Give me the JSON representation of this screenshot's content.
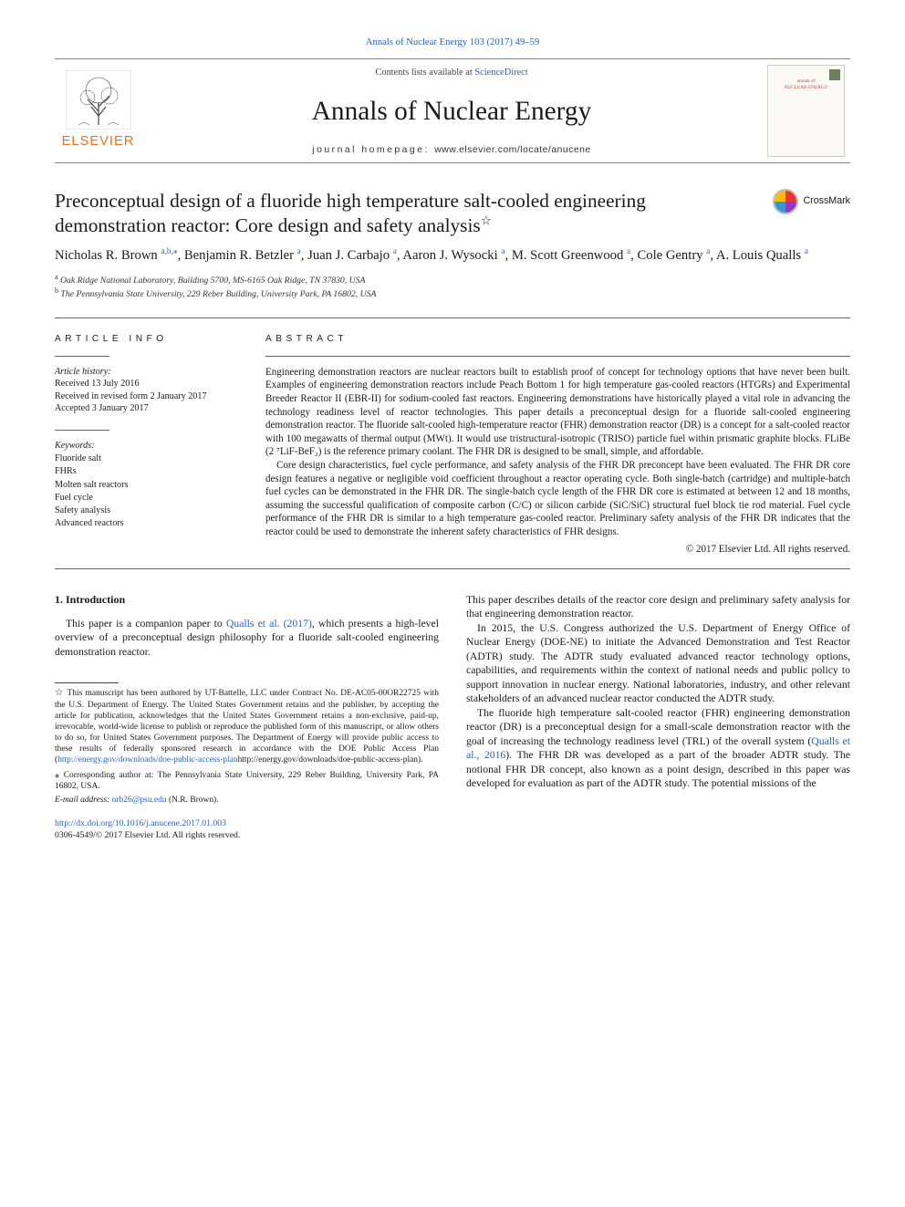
{
  "top_citation": "Annals of Nuclear Energy 103 (2017) 49–59",
  "header": {
    "contents_prefix": "Contents lists available at ",
    "contents_link": "ScienceDirect",
    "journal": "Annals of Nuclear Energy",
    "homepage_label": "journal homepage: ",
    "homepage_url": "www.elsevier.com/locate/anucene",
    "publisher": "ELSEVIER"
  },
  "crossmark_label": "CrossMark",
  "title": "Preconceptual design of a fluoride high temperature salt-cooled engineering demonstration reactor: Core design and safety analysis",
  "title_star": "☆",
  "authors_html": "Nicholas R. Brown <sup>a,b,</sup><span class='star'><sup>⁎</sup></span>, Benjamin R. Betzler <sup>a</sup>, Juan J. Carbajo <sup>a</sup>, Aaron J. Wysocki <sup>a</sup>, M. Scott Greenwood <sup>a</sup>, Cole Gentry <sup>a</sup>, A. Louis Qualls <sup>a</sup>",
  "affiliations": [
    {
      "sup": "a",
      "text": "Oak Ridge National Laboratory, Building 5700, MS-6165 Oak Ridge, TN 37830, USA"
    },
    {
      "sup": "b",
      "text": "The Pennsylvania State University, 229 Reber Building, University Park, PA 16802, USA"
    }
  ],
  "info_head": "ARTICLE INFO",
  "abstract_head": "ABSTRACT",
  "history_label": "Article history:",
  "history": [
    "Received 13 July 2016",
    "Received in revised form 2 January 2017",
    "Accepted 3 January 2017"
  ],
  "keywords_label": "Keywords:",
  "keywords": [
    "Fluoride salt",
    "FHRs",
    "Molten salt reactors",
    "Fuel cycle",
    "Safety analysis",
    "Advanced reactors"
  ],
  "abstract": [
    "Engineering demonstration reactors are nuclear reactors built to establish proof of concept for technology options that have never been built. Examples of engineering demonstration reactors include Peach Bottom 1 for high temperature gas-cooled reactors (HTGRs) and Experimental Breeder Reactor II (EBR-II) for sodium-cooled fast reactors. Engineering demonstrations have historically played a vital role in advancing the technology readiness level of reactor technologies. This paper details a preconceptual design for a fluoride salt-cooled engineering demonstration reactor. The fluoride salt-cooled high-temperature reactor (FHR) demonstration reactor (DR) is a concept for a salt-cooled reactor with 100 megawatts of thermal output (MWt). It would use tristructural-isotropic (TRISO) particle fuel within prismatic graphite blocks. FLiBe (2 ⁷LiF-BeF₂) is the reference primary coolant. The FHR DR is designed to be small, simple, and affordable.",
    "Core design characteristics, fuel cycle performance, and safety analysis of the FHR DR preconcept have been evaluated. The FHR DR core design features a negative or negligible void coefficient throughout a reactor operating cycle. Both single-batch (cartridge) and multiple-batch fuel cycles can be demonstrated in the FHR DR. The single-batch cycle length of the FHR DR core is estimated at between 12 and 18 months, assuming the successful qualification of composite carbon (C/C) or silicon carbide (SiC/SiC) structural fuel block tie rod material. Fuel cycle performance of the FHR DR is similar to a high temperature gas-cooled reactor. Preliminary safety analysis of the FHR DR indicates that the reactor could be used to demonstrate the inherent safety characteristics of FHR designs."
  ],
  "abstract_copyright": "© 2017 Elsevier Ltd. All rights reserved.",
  "intro_heading": "1. Introduction",
  "intro_left": "This paper is a companion paper to Qualls et al. (2017), which presents a high-level overview of a preconceptual design philosophy for a fluoride salt-cooled engineering demonstration reactor.",
  "intro_link1": "Qualls et al. (2017)",
  "intro_right": [
    "This paper describes details of the reactor core design and preliminary safety analysis for that engineering demonstration reactor.",
    "In 2015, the U.S. Congress authorized the U.S. Department of Energy Office of Nuclear Energy (DOE-NE) to initiate the Advanced Demonstration and Test Reactor (ADTR) study. The ADTR study evaluated advanced reactor technology options, capabilities, and requirements within the context of national needs and public policy to support innovation in nuclear energy. National laboratories, industry, and other relevant stakeholders of an advanced nuclear reactor conducted the ADTR study.",
    "The fluoride high temperature salt-cooled reactor (FHR) engineering demonstration reactor (DR) is a preconceptual design for a small-scale demonstration reactor with the goal of increasing the technology readiness level (TRL) of the overall system (Qualls et al., 2016). The FHR DR was developed as a part of the broader ADTR study. The notional FHR DR concept, also known as a point design, described in this paper was developed for evaluation as part of the ADTR study. The potential missions of the"
  ],
  "intro_link2": "Qualls et al., 2016",
  "footnotes": {
    "star": "This manuscript has been authored by UT-Battelle, LLC under Contract No. DE-AC05-00OR22725 with the U.S. Department of Energy. The United States Government retains and the publisher, by accepting the article for publication, acknowledges that the United States Government retains a non-exclusive, paid-up, irrevocable, world-wide license to publish or reproduce the published form of this manuscript, or allow others to do so, for United States Government purposes. The Department of Energy will provide public access to these results of federally sponsored research in accordance with the DOE Public Access Plan (http://energy.gov/downloads/doe-public-access-planhttp://energy.gov/downloads/doe-public-access-plan).",
    "star_link": "http://energy.gov/downloads/doe-public-access-plan",
    "corr": "Corresponding author at: The Pennsylvania State University, 229 Reber Building, University Park, PA 16802, USA.",
    "email_label": "E-mail address: ",
    "email": "nrb26@psu.edu",
    "email_suffix": " (N.R. Brown)."
  },
  "doi": {
    "url": "http://dx.doi.org/10.1016/j.anucene.2017.01.003",
    "issn_line": "0306-4549/© 2017 Elsevier Ltd. All rights reserved."
  },
  "colors": {
    "link": "#2962b8",
    "elsevier": "#e9711c",
    "rule": "#666666",
    "text": "#1a1a1a"
  }
}
